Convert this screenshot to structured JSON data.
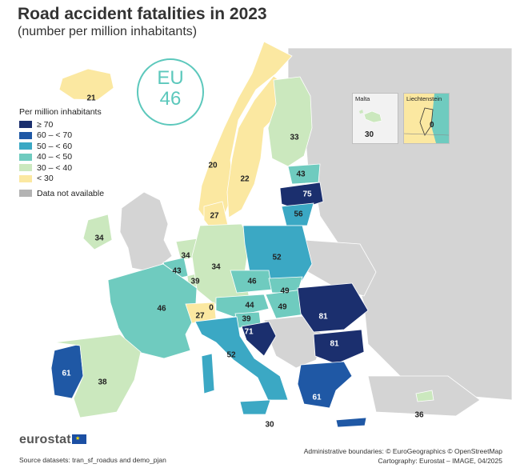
{
  "title": "Road accident fatalities in 2023",
  "subtitle": "(number per million inhabitants)",
  "eu_badge": {
    "label": "EU",
    "value": "46"
  },
  "legend": {
    "title": "Per million inhabitants",
    "items": [
      {
        "label": "≥ 70",
        "color": "#1b2f6e"
      },
      {
        "label": "60 – < 70",
        "color": "#1f58a5"
      },
      {
        "label": "50 – < 60",
        "color": "#3ba8c4"
      },
      {
        "label": "40 – < 50",
        "color": "#6fcbbf"
      },
      {
        "label": "30 – < 40",
        "color": "#cbe8be"
      },
      {
        "label": "< 30",
        "color": "#fbe8a1"
      }
    ],
    "na": {
      "label": "Data not available",
      "color": "#b3b3b3"
    }
  },
  "insets": {
    "malta": {
      "title": "Malta",
      "value": "30"
    },
    "liechtenstein": {
      "title": "Liechtenstein",
      "value": "0"
    }
  },
  "regions": [
    {
      "id": "IS",
      "value": "21"
    },
    {
      "id": "NO",
      "value": "20"
    },
    {
      "id": "SE",
      "value": "22"
    },
    {
      "id": "FI",
      "value": "33"
    },
    {
      "id": "EE",
      "value": "43"
    },
    {
      "id": "LV",
      "value": "75"
    },
    {
      "id": "LT",
      "value": "56"
    },
    {
      "id": "DK",
      "value": "27"
    },
    {
      "id": "IE",
      "value": "34"
    },
    {
      "id": "NL",
      "value": "34"
    },
    {
      "id": "BE",
      "value": "43"
    },
    {
      "id": "LU",
      "value": "39"
    },
    {
      "id": "DE",
      "value": "34"
    },
    {
      "id": "PL",
      "value": "52"
    },
    {
      "id": "CZ",
      "value": "46"
    },
    {
      "id": "SK",
      "value": "49"
    },
    {
      "id": "AT",
      "value": "44"
    },
    {
      "id": "HU",
      "value": "49"
    },
    {
      "id": "FR",
      "value": "46"
    },
    {
      "id": "CH",
      "value": "27"
    },
    {
      "id": "LI",
      "value": "0"
    },
    {
      "id": "SI",
      "value": "39"
    },
    {
      "id": "HR",
      "value": "71"
    },
    {
      "id": "RO",
      "value": "81"
    },
    {
      "id": "BG",
      "value": "81"
    },
    {
      "id": "IT",
      "value": "52"
    },
    {
      "id": "PT",
      "value": "61"
    },
    {
      "id": "ES",
      "value": "38"
    },
    {
      "id": "EL",
      "value": "61"
    },
    {
      "id": "MT",
      "value": "30"
    },
    {
      "id": "CY",
      "value": "36"
    }
  ],
  "logo": {
    "text": "eurostat",
    "flag_stars": "★"
  },
  "source": "Source datasets: tran_sf_roadus and demo_pjan",
  "credits": {
    "line1": "Administrative boundaries: © EuroGeographics © OpenStreetMap",
    "line2": "Cartography: Eurostat – IMAGE, 04/2025"
  }
}
